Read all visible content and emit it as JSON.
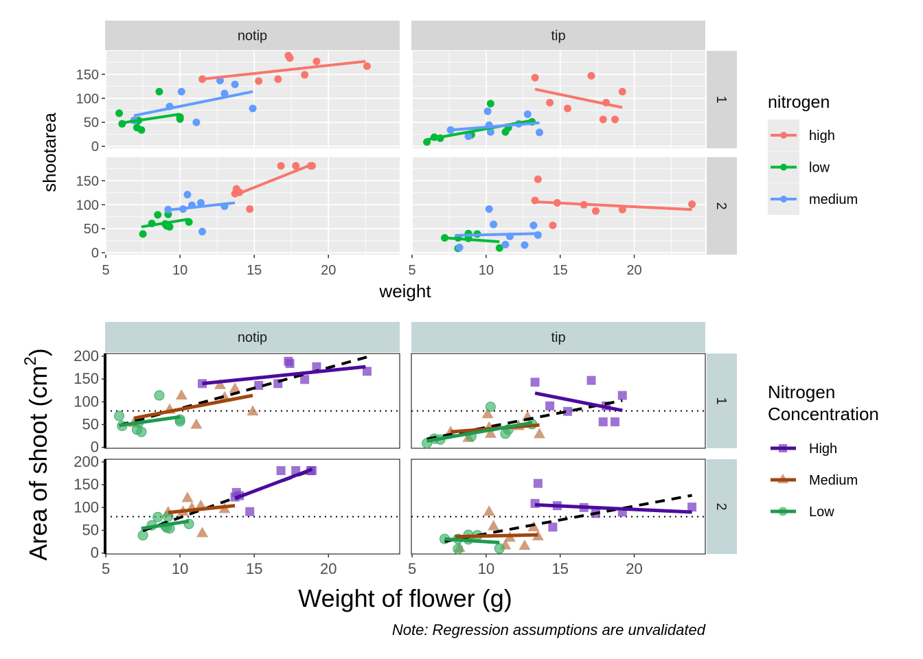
{
  "chart_data": {
    "type": "scatter",
    "facet_columns": [
      "notip",
      "tip"
    ],
    "facet_rows": [
      "1",
      "2"
    ],
    "panels": [
      {
        "col": "notip",
        "row": "1",
        "points": {
          "high": [
            [
              11.5,
              140
            ],
            [
              17.3,
              189
            ],
            [
              17.4,
              184
            ],
            [
              15.3,
              136
            ],
            [
              18.4,
              149
            ],
            [
              16.6,
              140
            ],
            [
              19.2,
              177
            ],
            [
              22.6,
              167
            ]
          ],
          "low": [
            [
              5.9,
              69
            ],
            [
              6.1,
              47
            ],
            [
              7.2,
              54
            ],
            [
              7.1,
              39
            ],
            [
              7.4,
              34
            ],
            [
              8.6,
              114
            ],
            [
              10.0,
              61
            ],
            [
              10.0,
              57
            ]
          ],
          "medium": [
            [
              6.9,
              54
            ],
            [
              9.3,
              83
            ],
            [
              10.1,
              114
            ],
            [
              11.1,
              50
            ],
            [
              12.7,
              137
            ],
            [
              13.0,
              110
            ],
            [
              13.7,
              129
            ],
            [
              14.9,
              79
            ]
          ]
        },
        "fits": {
          "high": [
            11.5,
            140,
            22.5,
            177
          ],
          "low": [
            5.9,
            48,
            10.0,
            67
          ],
          "medium": [
            6.9,
            64,
            14.9,
            114
          ]
        }
      },
      {
        "col": "tip",
        "row": "1",
        "points": {
          "high": [
            [
              13.3,
              143
            ],
            [
              17.1,
              147
            ],
            [
              19.2,
              114
            ],
            [
              14.3,
              91
            ],
            [
              15.5,
              79
            ],
            [
              18.1,
              91
            ],
            [
              17.9,
              56
            ],
            [
              18.7,
              56
            ]
          ],
          "low": [
            [
              6.0,
              9
            ],
            [
              6.5,
              19
            ],
            [
              6.9,
              17
            ],
            [
              10.3,
              89
            ],
            [
              9.0,
              24
            ],
            [
              11.3,
              30
            ],
            [
              11.5,
              39
            ],
            [
              13.1,
              51
            ]
          ],
          "medium": [
            [
              7.6,
              34
            ],
            [
              10.1,
              73
            ],
            [
              10.2,
              44
            ],
            [
              8.8,
              21
            ],
            [
              10.3,
              30
            ],
            [
              12.2,
              47
            ],
            [
              12.8,
              67
            ],
            [
              13.6,
              29
            ]
          ]
        },
        "fits": {
          "high": [
            13.3,
            119,
            19.2,
            81
          ],
          "low": [
            6.0,
            14,
            13.1,
            54
          ],
          "medium": [
            7.6,
            34,
            13.6,
            49
          ]
        }
      },
      {
        "col": "notip",
        "row": "2",
        "points": {
          "high": [
            [
              16.8,
              181
            ],
            [
              17.8,
              181
            ],
            [
              18.8,
              181
            ],
            [
              18.9,
              181
            ],
            [
              13.7,
              123
            ],
            [
              13.8,
              133
            ],
            [
              14.0,
              126
            ],
            [
              14.7,
              91
            ]
          ],
          "low": [
            [
              7.5,
              39
            ],
            [
              8.1,
              61
            ],
            [
              8.5,
              79
            ],
            [
              9.2,
              80
            ],
            [
              9.0,
              60
            ],
            [
              9.3,
              54
            ],
            [
              10.6,
              64
            ],
            [
              9.1,
              56
            ]
          ],
          "medium": [
            [
              9.2,
              90
            ],
            [
              10.5,
              121
            ],
            [
              10.2,
              91
            ],
            [
              10.8,
              99
            ],
            [
              11.4,
              104
            ],
            [
              13.0,
              97
            ],
            [
              11.5,
              44
            ]
          ]
        },
        "fits": {
          "high": [
            13.7,
            120,
            18.9,
            184
          ],
          "low": [
            7.4,
            54,
            10.6,
            70
          ],
          "medium": [
            9.2,
            89,
            13.7,
            104
          ]
        }
      },
      {
        "col": "tip",
        "row": "2",
        "points": {
          "high": [
            [
              13.5,
              153
            ],
            [
              13.3,
              109
            ],
            [
              14.8,
              104
            ],
            [
              16.6,
              100
            ],
            [
              17.4,
              87
            ],
            [
              19.2,
              90
            ],
            [
              23.9,
              101
            ],
            [
              14.5,
              57
            ]
          ],
          "low": [
            [
              7.2,
              31
            ],
            [
              8.1,
              31
            ],
            [
              8.8,
              40
            ],
            [
              9.4,
              39
            ],
            [
              8.1,
              9
            ],
            [
              10.9,
              10
            ],
            [
              8.8,
              30
            ]
          ],
          "medium": [
            [
              10.2,
              91
            ],
            [
              10.5,
              59
            ],
            [
              8.2,
              11
            ],
            [
              11.6,
              34
            ],
            [
              11.3,
              17
            ],
            [
              12.6,
              16
            ],
            [
              13.2,
              57
            ],
            [
              13.5,
              37
            ]
          ]
        },
        "fits": {
          "high": [
            13.3,
            106,
            23.9,
            90
          ],
          "low": [
            7.2,
            31,
            10.9,
            23
          ],
          "medium": [
            7.9,
            36,
            13.5,
            40
          ]
        }
      }
    ],
    "xlim": [
      4.95,
      24.8
    ],
    "xticks": [
      5,
      10,
      15,
      20
    ],
    "plots": [
      {
        "id": "default",
        "xlabel": "weight",
        "ylabel": "shootarea",
        "ylim": [
          -4,
          199
        ],
        "yticks": [
          0,
          50,
          100,
          150
        ],
        "legend": {
          "title": "nitrogen",
          "position": "right",
          "entries": [
            {
              "key": "high",
              "label": "high",
              "color": "#F8766D"
            },
            {
              "key": "low",
              "label": "low",
              "color": "#00BA38"
            },
            {
              "key": "medium",
              "label": "medium",
              "color": "#619CFF"
            }
          ]
        }
      },
      {
        "id": "custom",
        "xlabel": "Weight of flower (g)",
        "ylabel": "Area of shoot (cm",
        "ylabel_sup": "2",
        "ylabel_end": ")",
        "ylim": [
          -2,
          206
        ],
        "yticks": [
          0,
          50,
          100,
          150,
          200
        ],
        "reference_hline": 80,
        "overall_fit": "dashed black regression line per panel",
        "legend": {
          "title_lines": [
            "Nitrogen",
            "Concentration"
          ],
          "position": "right",
          "entries": [
            {
              "key": "high",
              "label": "High",
              "color": "#4B0C9E",
              "point": "#7E44C4",
              "shape": "square"
            },
            {
              "key": "medium",
              "label": "Medium",
              "color": "#A0460F",
              "point": "#C27C52",
              "shape": "triangle"
            },
            {
              "key": "low",
              "label": "Low",
              "color": "#1E9A4E",
              "point": "#3DB068",
              "shape": "circle"
            }
          ]
        },
        "caption": "Note: Regression assumptions are unvalidated"
      }
    ]
  }
}
